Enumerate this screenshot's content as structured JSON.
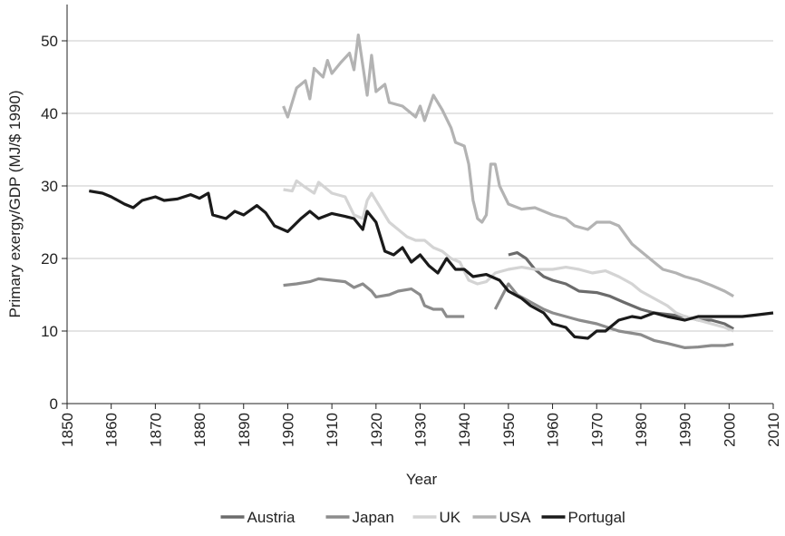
{
  "chart_data": {
    "type": "line",
    "x_label": "Year",
    "y_label": "Primary exergy/GDP (MJ/$ 1990)",
    "xlim": [
      1850,
      2010
    ],
    "xticks": [
      1850,
      1860,
      1870,
      1880,
      1890,
      1900,
      1910,
      1920,
      1930,
      1940,
      1950,
      1960,
      1970,
      1980,
      1990,
      2000,
      2010
    ],
    "ylim": [
      0,
      55
    ],
    "yticks": [
      0,
      10,
      20,
      30,
      40,
      50
    ],
    "grid": true,
    "legend": "bottom",
    "series": [
      {
        "name": "Austria",
        "color": "#6b6b6b",
        "x": [
          1950,
          1952,
          1954,
          1956,
          1958,
          1960,
          1963,
          1966,
          1970,
          1973,
          1976,
          1980,
          1983,
          1986,
          1990,
          1993,
          1996,
          1999,
          2001
        ],
        "values": [
          20.5,
          20.8,
          20,
          18.5,
          17.5,
          17,
          16.5,
          15.5,
          15.3,
          14.8,
          14,
          13,
          12.5,
          12.3,
          12,
          11.5,
          11.5,
          11,
          10.3
        ]
      },
      {
        "name": "Japan",
        "color": "#8c8c8c",
        "x": [
          1899,
          1902,
          1905,
          1907,
          1910,
          1913,
          1915,
          1917,
          1919,
          1920,
          1923,
          1925,
          1928,
          1930,
          1931,
          1933,
          1935,
          1936,
          1938,
          1940,
          1944,
          1947,
          1950,
          1952,
          1955,
          1958,
          1960,
          1963,
          1966,
          1970,
          1975,
          1980,
          1983,
          1986,
          1990,
          1993,
          1996,
          1999,
          2001
        ],
        "values": [
          16.3,
          16.5,
          16.8,
          17.2,
          17,
          16.8,
          16,
          16.5,
          15.5,
          14.7,
          15,
          15.5,
          15.8,
          15,
          13.5,
          13,
          13,
          12,
          12,
          12,
          null,
          13,
          16.5,
          15,
          14,
          13,
          12.5,
          12,
          11.5,
          11,
          10,
          9.5,
          8.7,
          8.3,
          7.7,
          7.8,
          8,
          8,
          8.2
        ]
      },
      {
        "name": "UK",
        "color": "#d4d4d4",
        "x": [
          1899,
          1901,
          1902,
          1904,
          1906,
          1907,
          1910,
          1913,
          1915,
          1917,
          1918,
          1919,
          1921,
          1923,
          1925,
          1927,
          1929,
          1931,
          1933,
          1935,
          1937,
          1939,
          1941,
          1943,
          1945,
          1947,
          1950,
          1953,
          1956,
          1960,
          1963,
          1966,
          1969,
          1972,
          1975,
          1978,
          1980,
          1983,
          1986,
          1988,
          1990,
          1993,
          1996,
          1999,
          2001
        ],
        "values": [
          29.5,
          29.3,
          30.7,
          29.8,
          29,
          30.5,
          29,
          28.5,
          26,
          25.5,
          28,
          29,
          27,
          25,
          24,
          23,
          22.5,
          22.5,
          21.5,
          21,
          20,
          19.5,
          17,
          16.5,
          16.8,
          18,
          18.5,
          18.8,
          18.5,
          18.5,
          18.8,
          18.5,
          18,
          18.3,
          17.5,
          16.5,
          15.5,
          14.5,
          13.5,
          12.5,
          12,
          11.5,
          11,
          10.5,
          10
        ]
      },
      {
        "name": "USA",
        "color": "#b3b3b3",
        "x": [
          1899,
          1900,
          1902,
          1904,
          1905,
          1906,
          1908,
          1909,
          1910,
          1912,
          1914,
          1915,
          1916,
          1918,
          1919,
          1920,
          1922,
          1923,
          1926,
          1928,
          1929,
          1930,
          1931,
          1933,
          1935,
          1937,
          1938,
          1940,
          1941,
          1942,
          1943,
          1944,
          1945,
          1946,
          1947,
          1948,
          1950,
          1953,
          1956,
          1958,
          1960,
          1963,
          1965,
          1968,
          1970,
          1973,
          1975,
          1978,
          1980,
          1983,
          1985,
          1988,
          1990,
          1993,
          1996,
          1999,
          2001
        ],
        "values": [
          41,
          39.5,
          43.5,
          44.5,
          42,
          46.2,
          45,
          47.3,
          45.5,
          47,
          48.3,
          46,
          50.8,
          42.5,
          48,
          43,
          44,
          41.5,
          41,
          40,
          39.5,
          41,
          39,
          42.5,
          40.5,
          38,
          36,
          35.5,
          33,
          28,
          25.5,
          25,
          26,
          33,
          33,
          30,
          27.5,
          26.8,
          27,
          26.5,
          26,
          25.5,
          24.5,
          24,
          25,
          25,
          24.5,
          22,
          21,
          19.5,
          18.5,
          18,
          17.5,
          17,
          16.3,
          15.5,
          14.8
        ]
      },
      {
        "name": "Portugal",
        "color": "#1a1a1a",
        "x": [
          1855,
          1858,
          1860,
          1863,
          1865,
          1867,
          1870,
          1872,
          1875,
          1878,
          1880,
          1882,
          1883,
          1886,
          1888,
          1890,
          1893,
          1895,
          1897,
          1900,
          1903,
          1905,
          1907,
          1910,
          1913,
          1915,
          1917,
          1918,
          1920,
          1922,
          1924,
          1926,
          1928,
          1930,
          1932,
          1934,
          1936,
          1938,
          1940,
          1942,
          1945,
          1948,
          1950,
          1953,
          1955,
          1958,
          1960,
          1963,
          1965,
          1968,
          1970,
          1972,
          1975,
          1978,
          1980,
          1983,
          1986,
          1990,
          1993,
          1996,
          2000,
          2003,
          2006,
          2010
        ],
        "values": [
          29.3,
          29,
          28.5,
          27.5,
          27,
          28,
          28.5,
          28,
          28.2,
          28.8,
          28.3,
          29,
          26,
          25.5,
          26.5,
          26,
          27.3,
          26.3,
          24.5,
          23.7,
          25.5,
          26.5,
          25.5,
          26.2,
          25.8,
          25.5,
          24,
          26.5,
          25,
          21,
          20.5,
          21.5,
          19.5,
          20.5,
          19,
          18,
          20,
          18.5,
          18.5,
          17.5,
          17.8,
          17,
          15.5,
          14.5,
          13.5,
          12.5,
          11,
          10.5,
          9.2,
          9,
          10,
          10,
          11.5,
          12,
          11.8,
          12.5,
          12,
          11.5,
          12,
          12,
          12,
          12,
          12.2,
          12.5
        ]
      }
    ]
  }
}
